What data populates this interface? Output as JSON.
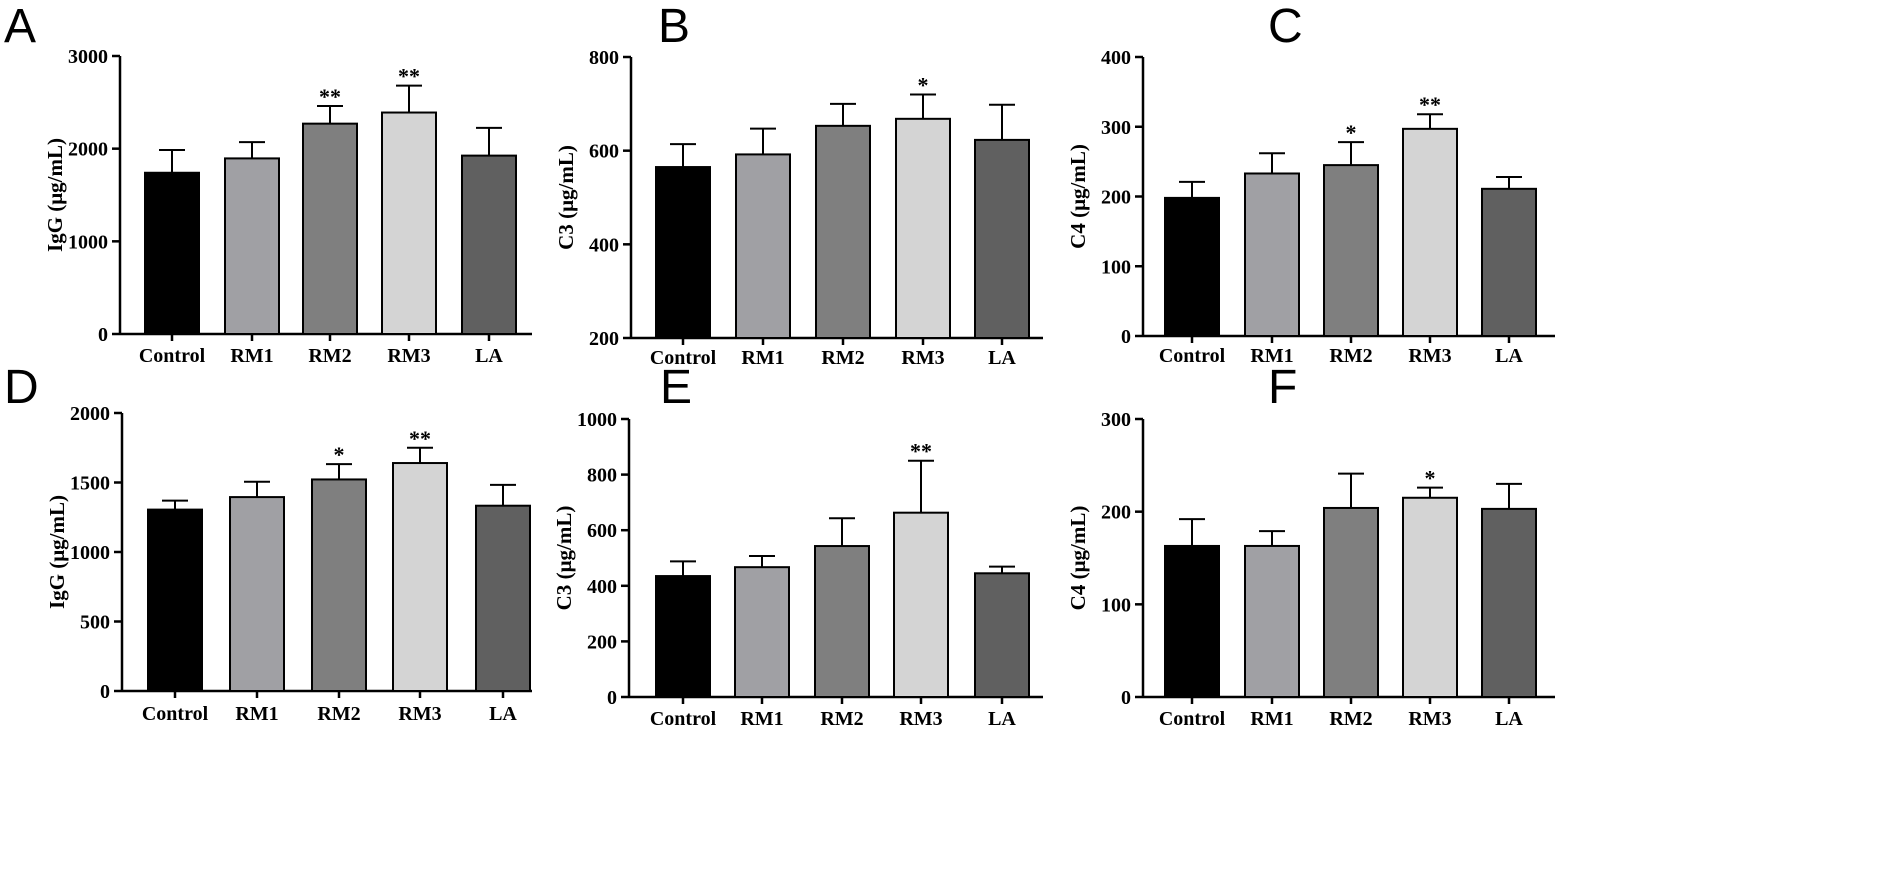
{
  "chart_data": [
    {
      "panel": "A",
      "type": "bar",
      "categories": [
        "Control",
        "RM1",
        "RM2",
        "RM3",
        "LA"
      ],
      "values": [
        1740,
        1895,
        2270,
        2390,
        1925
      ],
      "errors": [
        245,
        175,
        190,
        290,
        300
      ],
      "significance": [
        "",
        "",
        "**",
        "**",
        ""
      ],
      "colors": [
        "#000000",
        "#a0a0a4",
        "#7f7f7f",
        "#d4d4d4",
        "#606060"
      ],
      "ylabel": "IgG (μg/mL)",
      "ylim": [
        0,
        3000
      ],
      "yticks": [
        0,
        1000,
        2000,
        3000
      ],
      "ytick_labels": [
        "0",
        "1000",
        "2000",
        "3000"
      ]
    },
    {
      "panel": "B",
      "type": "bar",
      "categories": [
        "Control",
        "RM1",
        "RM2",
        "RM3",
        "LA"
      ],
      "values": [
        565,
        592,
        653,
        668,
        623
      ],
      "errors": [
        49,
        55,
        47,
        52,
        75
      ],
      "significance": [
        "",
        "",
        "",
        "*",
        ""
      ],
      "colors": [
        "#000000",
        "#a0a0a4",
        "#7f7f7f",
        "#d4d4d4",
        "#606060"
      ],
      "ylabel": "C3 (μg/mL)",
      "ylim": [
        200,
        800
      ],
      "yticks": [
        200,
        400,
        600,
        800
      ],
      "ytick_labels": [
        "200",
        "400",
        "600",
        "800"
      ]
    },
    {
      "panel": "C",
      "type": "bar",
      "categories": [
        "Control",
        "RM1",
        "RM2",
        "RM3",
        "LA"
      ],
      "values": [
        198,
        233,
        245,
        297,
        211
      ],
      "errors": [
        23,
        29,
        33,
        21,
        17
      ],
      "significance": [
        "",
        "",
        "*",
        "**",
        ""
      ],
      "colors": [
        "#000000",
        "#a0a0a4",
        "#7f7f7f",
        "#d4d4d4",
        "#606060"
      ],
      "ylabel": "C4 (μg/mL)",
      "ylim": [
        0,
        400
      ],
      "yticks": [
        0,
        100,
        200,
        300,
        400
      ],
      "ytick_labels": [
        "0",
        "100",
        "200",
        "300",
        "400"
      ]
    },
    {
      "panel": "D",
      "type": "bar",
      "categories": [
        "Control",
        "RM1",
        "RM2",
        "RM3",
        "LA"
      ],
      "values": [
        1305,
        1395,
        1522,
        1640,
        1333
      ],
      "errors": [
        65,
        110,
        110,
        110,
        150
      ],
      "significance": [
        "",
        "",
        "*",
        "**",
        ""
      ],
      "colors": [
        "#000000",
        "#a0a0a4",
        "#7f7f7f",
        "#d4d4d4",
        "#606060"
      ],
      "ylabel": "IgG (μg/mL)",
      "ylim": [
        0,
        2000
      ],
      "yticks": [
        0,
        500,
        1000,
        1500,
        2000
      ],
      "ytick_labels": [
        "0",
        "500",
        "1000",
        "1500",
        "2000"
      ]
    },
    {
      "panel": "E",
      "type": "bar",
      "categories": [
        "Control",
        "RM1",
        "RM2",
        "RM3",
        "LA"
      ],
      "values": [
        435,
        467,
        543,
        663,
        445
      ],
      "errors": [
        53,
        40,
        100,
        187,
        24
      ],
      "significance": [
        "",
        "",
        "",
        "**",
        ""
      ],
      "colors": [
        "#000000",
        "#a0a0a4",
        "#7f7f7f",
        "#d4d4d4",
        "#606060"
      ],
      "ylabel": "C3 (μg/mL)",
      "ylim": [
        0,
        1000
      ],
      "yticks": [
        0,
        200,
        400,
        600,
        800,
        1000
      ],
      "ytick_labels": [
        "0",
        "200",
        "400",
        "600",
        "800",
        "1000"
      ]
    },
    {
      "panel": "F",
      "type": "bar",
      "categories": [
        "Control",
        "RM1",
        "RM2",
        "RM3",
        "LA"
      ],
      "values": [
        163,
        163,
        204,
        215,
        203
      ],
      "errors": [
        29,
        16,
        37,
        11,
        27
      ],
      "significance": [
        "",
        "",
        "",
        "*",
        ""
      ],
      "colors": [
        "#000000",
        "#a0a0a4",
        "#7f7f7f",
        "#d4d4d4",
        "#606060"
      ],
      "ylabel": "C4 (μg/mL)",
      "ylim": [
        0,
        300
      ],
      "yticks": [
        0,
        100,
        200,
        300
      ],
      "ytick_labels": [
        "0",
        "100",
        "200",
        "300"
      ]
    }
  ]
}
